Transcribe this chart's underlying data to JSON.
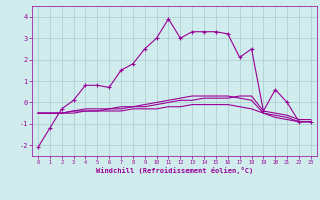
{
  "xlabel": "Windchill (Refroidissement éolien,°C)",
  "x": [
    0,
    1,
    2,
    3,
    4,
    5,
    6,
    7,
    8,
    9,
    10,
    11,
    12,
    13,
    14,
    15,
    16,
    17,
    18,
    19,
    20,
    21,
    22,
    23
  ],
  "line1": [
    -2.1,
    -1.2,
    -0.3,
    0.1,
    0.8,
    0.8,
    0.7,
    1.5,
    1.8,
    2.5,
    3.0,
    3.9,
    3.0,
    3.3,
    3.3,
    3.3,
    3.2,
    2.1,
    2.5,
    -0.4,
    0.6,
    0.0,
    -0.9,
    -0.9
  ],
  "line2": [
    -0.5,
    -0.5,
    -0.5,
    -0.4,
    -0.4,
    -0.4,
    -0.3,
    -0.3,
    -0.2,
    -0.2,
    -0.1,
    0.0,
    0.1,
    0.1,
    0.2,
    0.2,
    0.2,
    0.3,
    0.3,
    -0.4,
    -0.5,
    -0.6,
    -0.8,
    -0.8
  ],
  "line3": [
    -0.5,
    -0.5,
    -0.5,
    -0.5,
    -0.4,
    -0.4,
    -0.4,
    -0.4,
    -0.3,
    -0.3,
    -0.3,
    -0.2,
    -0.2,
    -0.1,
    -0.1,
    -0.1,
    -0.1,
    -0.2,
    -0.3,
    -0.5,
    -0.6,
    -0.7,
    -0.9,
    -0.9
  ],
  "line4": [
    -0.5,
    -0.5,
    -0.5,
    -0.4,
    -0.3,
    -0.3,
    -0.3,
    -0.2,
    -0.2,
    -0.1,
    0.0,
    0.1,
    0.2,
    0.3,
    0.3,
    0.3,
    0.3,
    0.2,
    0.1,
    -0.5,
    -0.7,
    -0.8,
    -0.9,
    -0.9
  ],
  "line_color": "#990099",
  "bg_color": "#d0ecec",
  "grid_color": "#a8cccc",
  "ylim": [
    -2.5,
    4.5
  ],
  "yticks": [
    -2,
    -1,
    0,
    1,
    2,
    3,
    4
  ],
  "xticks": [
    0,
    1,
    2,
    3,
    4,
    5,
    6,
    7,
    8,
    9,
    10,
    11,
    12,
    13,
    14,
    15,
    16,
    17,
    18,
    19,
    20,
    21,
    22,
    23
  ],
  "marker": "+"
}
